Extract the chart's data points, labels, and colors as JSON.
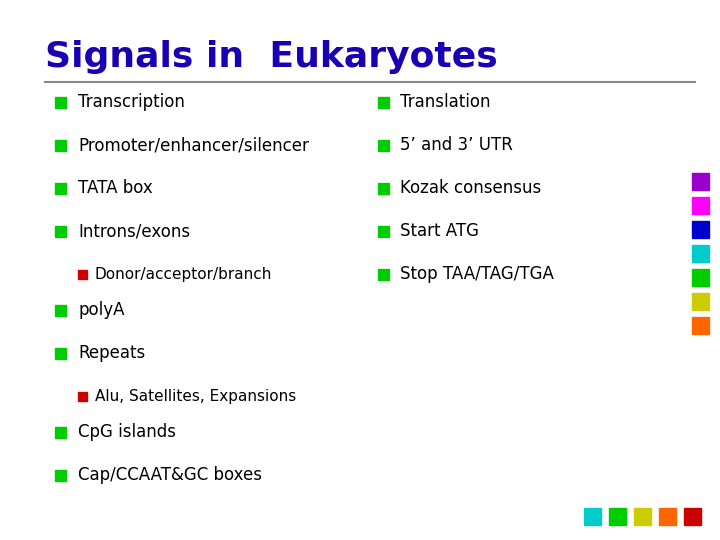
{
  "title": "Signals in  Eukaryotes",
  "title_color": "#1a00b3",
  "title_fontsize": 26,
  "separator_color": "#888888",
  "bg_color": "#ffffff",
  "bullet_color_green": "#00cc00",
  "bullet_color_red": "#cc0000",
  "text_color": "#000000",
  "font_family": "Comic Sans MS",
  "left_items": [
    {
      "text": "Transcription",
      "level": 0
    },
    {
      "text": "Promoter/enhancer/silencer",
      "level": 0
    },
    {
      "text": "TATA box",
      "level": 0
    },
    {
      "text": "Introns/exons",
      "level": 0
    },
    {
      "text": "Donor/acceptor/branch",
      "level": 1
    },
    {
      "text": "polyA",
      "level": 0
    },
    {
      "text": "Repeats",
      "level": 0
    },
    {
      "text": "Alu, Satellites, Expansions",
      "level": 1
    },
    {
      "text": "CpG islands",
      "level": 0
    },
    {
      "text": "Cap/CCAAT&GC boxes",
      "level": 0
    }
  ],
  "right_items": [
    {
      "text": "Translation",
      "level": 0
    },
    {
      "text": "5’ and 3’ UTR",
      "level": 0
    },
    {
      "text": "Kozak consensus",
      "level": 0
    },
    {
      "text": "Start ATG",
      "level": 0
    },
    {
      "text": "Stop TAA/TAG/TGA",
      "level": 0
    }
  ],
  "corner_col_colors": [
    "#9900cc",
    "#ff00ff",
    "#0000cc",
    "#00cccc",
    "#00cc00",
    "#cccc00",
    "#ff6600"
  ],
  "corner_row_colors": [
    "#00cccc",
    "#00cc00",
    "#cccc00",
    "#ff6600",
    "#cc0000"
  ]
}
